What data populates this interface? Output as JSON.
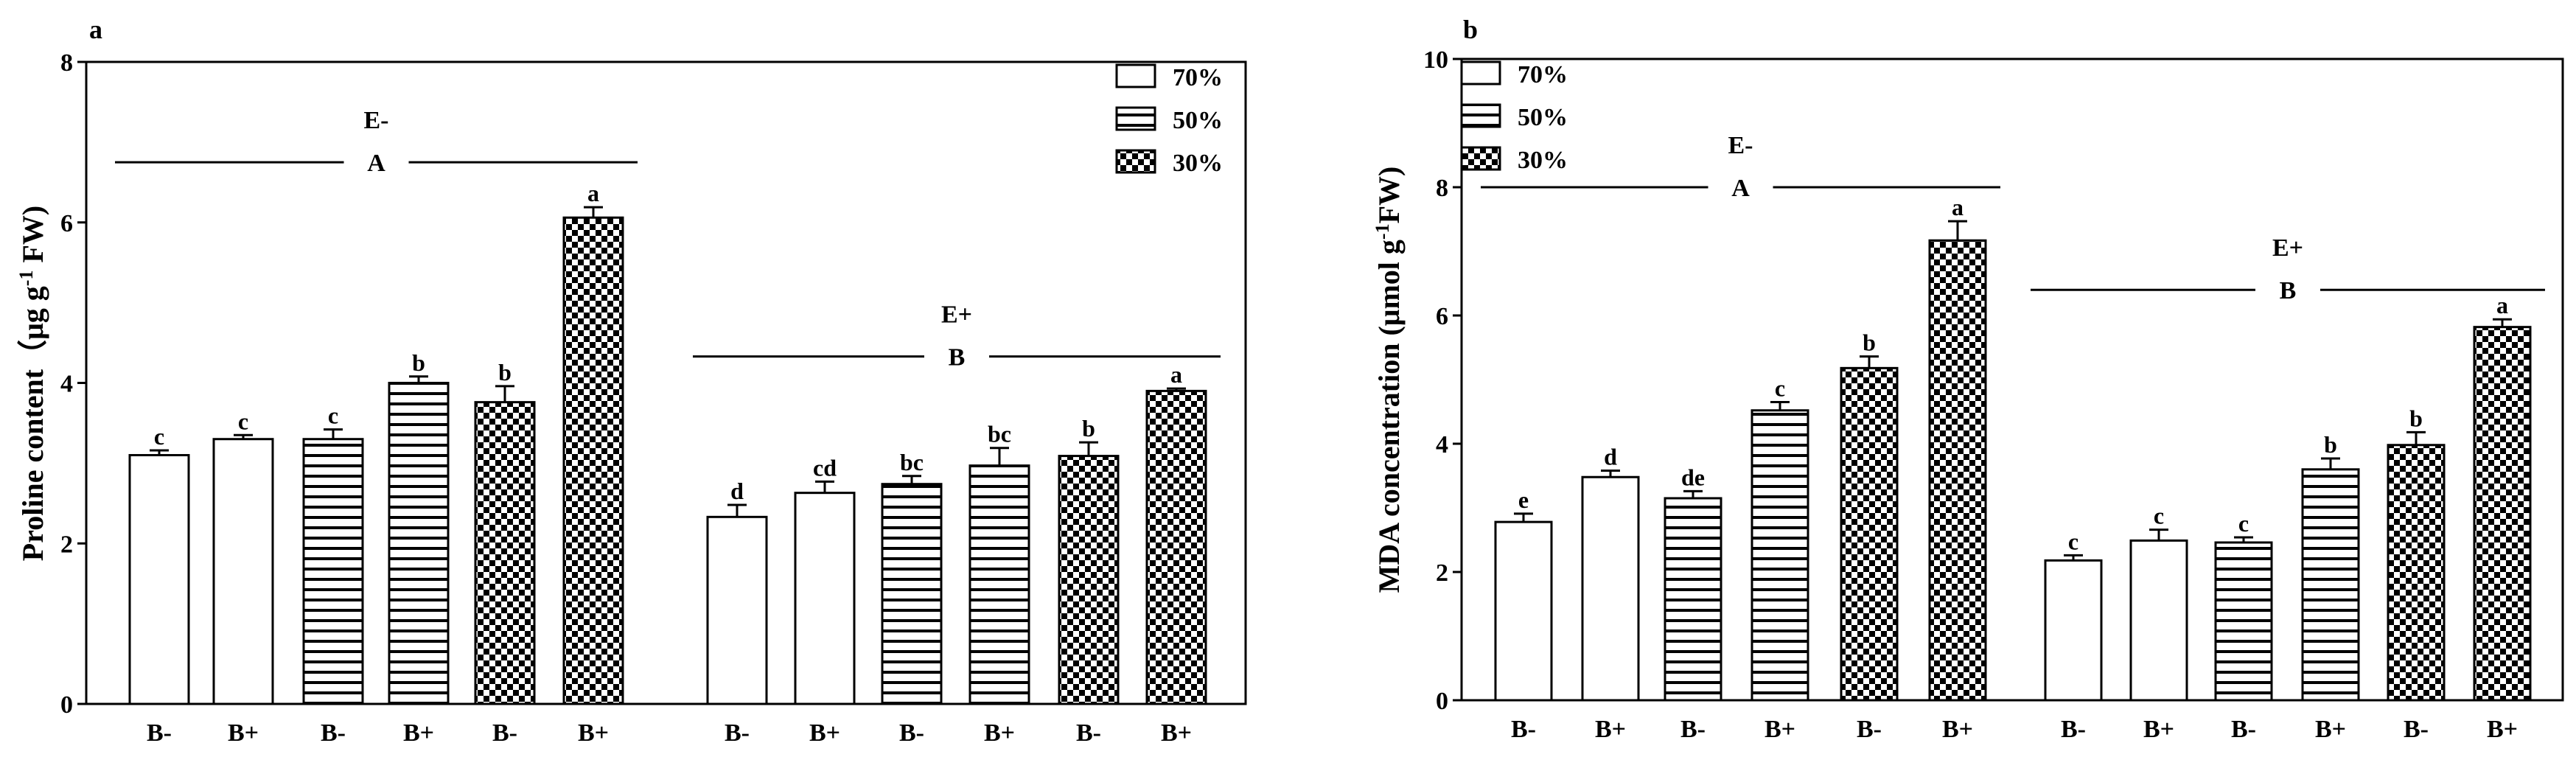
{
  "colors": {
    "ink": "#000000",
    "paper": "#ffffff"
  },
  "chart_data": [
    {
      "type": "bar",
      "panel_label": "a",
      "ylabel_parts": [
        "Proline content（μg g",
        "-1",
        " FW)"
      ],
      "ylim": [
        0,
        8
      ],
      "yticks": [
        "0",
        "2",
        "4",
        "6",
        "8"
      ],
      "categories": [
        "B-",
        "B+",
        "B-",
        "B+",
        "B-",
        "B+",
        "B-",
        "B+",
        "B-",
        "B+",
        "B-",
        "B+"
      ],
      "patterns": [
        "70%",
        "70%",
        "50%",
        "50%",
        "30%",
        "30%",
        "70%",
        "70%",
        "50%",
        "50%",
        "30%",
        "30%"
      ],
      "values": [
        3.1,
        3.3,
        3.3,
        4.0,
        3.76,
        6.06,
        2.33,
        2.63,
        2.74,
        2.97,
        3.09,
        3.9
      ],
      "errors": [
        0.06,
        0.05,
        0.12,
        0.08,
        0.2,
        0.13,
        0.15,
        0.14,
        0.1,
        0.22,
        0.17,
        0.03
      ],
      "letters": [
        "c",
        "c",
        "c",
        "b",
        "b",
        "a",
        "d",
        "cd",
        "bc",
        "bc",
        "b",
        "a"
      ],
      "groups": [
        {
          "name": "E-",
          "letter": "A",
          "from": 0,
          "to": 5,
          "level": 6.75
        },
        {
          "name": "E+",
          "letter": "B",
          "from": 6,
          "to": 11,
          "level": 4.33
        }
      ],
      "legend": [
        "70%",
        "50%",
        "30%"
      ],
      "legend_position": "top-right"
    },
    {
      "type": "bar",
      "panel_label": "b",
      "ylabel_parts": [
        "MDA concentration (μmol g",
        "-1",
        "FW)"
      ],
      "ylim": [
        0,
        10
      ],
      "yticks": [
        "0",
        "2",
        "4",
        "6",
        "8",
        "10"
      ],
      "categories": [
        "B-",
        "B+",
        "B-",
        "B+",
        "B-",
        "B+",
        "B-",
        "B+",
        "B-",
        "B+",
        "B-",
        "B+"
      ],
      "patterns": [
        "70%",
        "70%",
        "50%",
        "50%",
        "30%",
        "30%",
        "70%",
        "70%",
        "50%",
        "50%",
        "30%",
        "30%"
      ],
      "values": [
        2.78,
        3.48,
        3.15,
        4.52,
        5.18,
        7.17,
        2.18,
        2.49,
        2.46,
        3.6,
        3.98,
        5.82
      ],
      "errors": [
        0.13,
        0.1,
        0.11,
        0.13,
        0.18,
        0.3,
        0.08,
        0.17,
        0.08,
        0.17,
        0.2,
        0.12
      ],
      "letters": [
        "e",
        "d",
        "de",
        "c",
        "b",
        "a",
        "c",
        "c",
        "c",
        "b",
        "b",
        "a"
      ],
      "groups": [
        {
          "name": "E-",
          "letter": "A",
          "from": 0,
          "to": 5,
          "level": 8.0
        },
        {
          "name": "E+",
          "letter": "B",
          "from": 6,
          "to": 11,
          "level": 6.4
        }
      ],
      "legend": [
        "70%",
        "50%",
        "30%"
      ],
      "legend_position": "top-left"
    }
  ]
}
